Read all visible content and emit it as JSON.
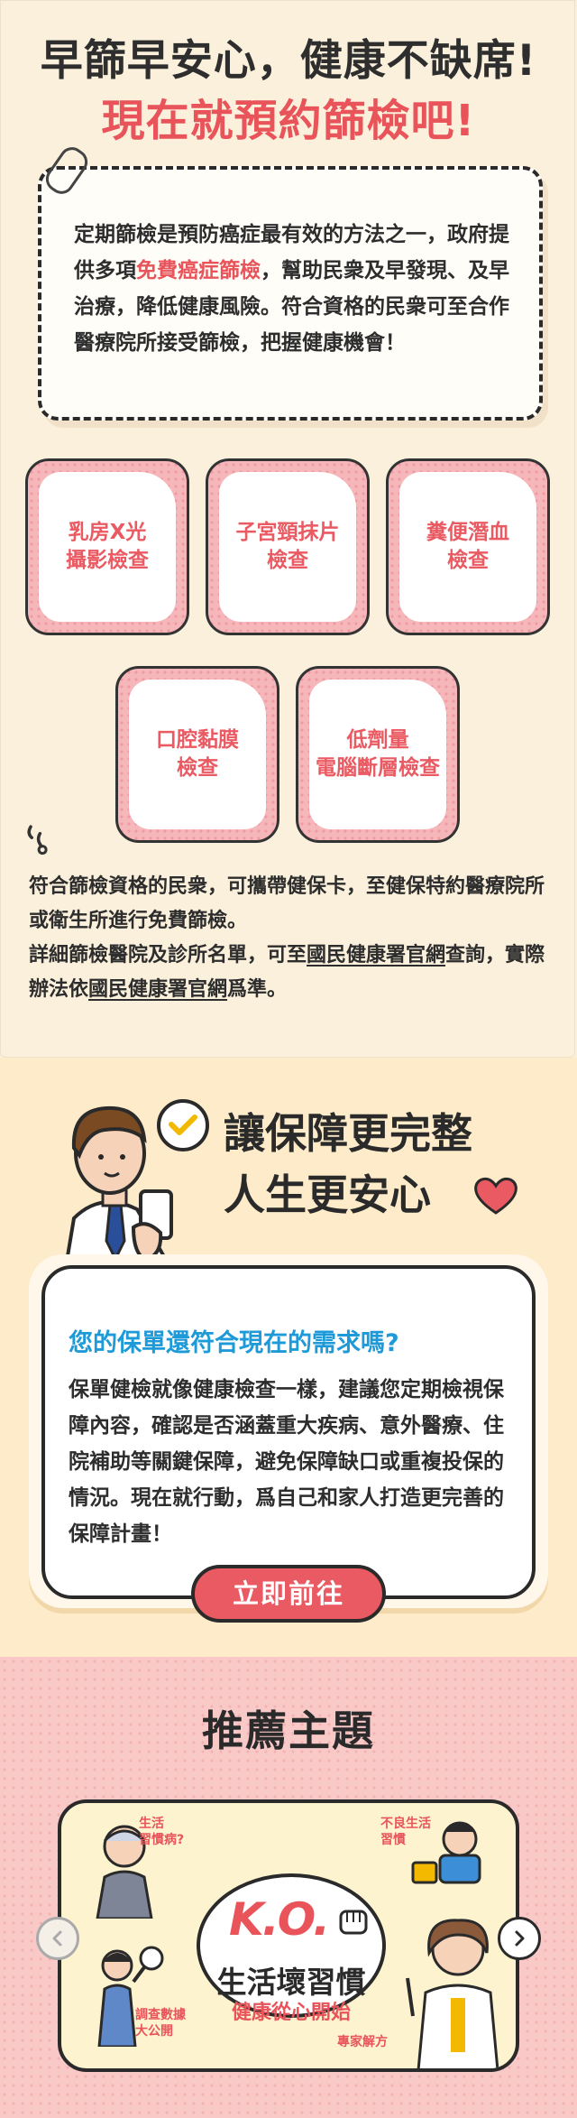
{
  "screening": {
    "title_line1": "早篩早安心，健康不缺席!",
    "title_line2": "現在就預約篩檢吧!",
    "intro_before": "定期篩檢是預防癌症最有效的方法之一，政府提供多項",
    "intro_highlight": "免費癌症篩檢",
    "intro_after": "，幫助民衆及早發現、及早治療，降低健康風險。符合資格的民衆可至合作醫療院所接受篩檢，把握健康機會！",
    "tiles": [
      "乳房X光\n攝影檢查",
      "子宮頸抹片\n檢查",
      "糞便潛血\n檢查",
      "口腔黏膜\n檢查",
      "低劑量\n電腦斷層檢查"
    ],
    "note_line1": "符合篩檢資格的民衆，可攜帶健保卡，至健保特約醫療院所或衛生所進行免費篩檢。",
    "note_part1": "詳細篩檢醫院及診所名單，可至",
    "note_link1": "國民健康署官網",
    "note_part2": "查詢，實際辦法依",
    "note_link2": "國民健康署官網",
    "note_part3": "爲準。"
  },
  "policy_check": {
    "headline_line1": "讓保障更完整",
    "headline_line2": "人生更安心",
    "question": "您的保單還符合現在的需求嗎?",
    "body": "保單健檢就像健康檢查一樣，建議您定期檢視保障內容，確認是否涵蓋重大疾病、意外醫療、住院補助等關鍵保障，避免保障缺口或重複投保的情況。現在就行動，爲自己和家人打造更完善的保障計畫！",
    "cta_label": "立即前往"
  },
  "recommend": {
    "title": "推薦主題",
    "banner": {
      "ko": "K.O.",
      "title": "生活壞習慣",
      "subtitle": "健康從心開始",
      "label_tl": "生活\n習慣病?",
      "label_tr": "不良生活\n習慣",
      "label_bl": "調查數據\n大公開",
      "label_br": "專家解方"
    }
  },
  "colors": {
    "accent_red": "#e8545a",
    "accent_blue": "#1f9ad8",
    "section1_bg": "#faf0dc",
    "section2_bg": "#fdebc9",
    "section3_bg": "#f9c9c8"
  },
  "icons": [
    "paperclip-icon",
    "quote-icon",
    "check-bubble-icon",
    "heart-icon",
    "chevron-left-icon",
    "chevron-right-icon",
    "fist-icon"
  ]
}
